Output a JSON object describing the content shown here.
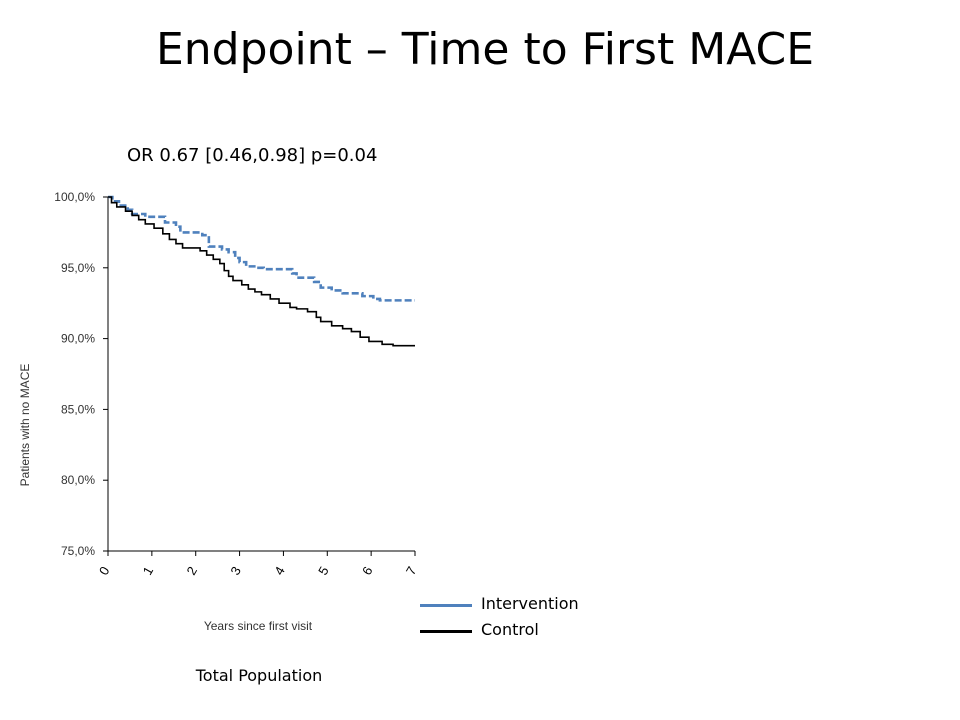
{
  "slide": {
    "title": "Endpoint – Time to First MACE"
  },
  "chart_data": {
    "type": "line",
    "title": "OR 0.67 [0.46,0.98]  p=0.04",
    "xlabel": "Years since first visit",
    "ylabel": "Patients with no MACE",
    "caption": "Total Population",
    "xlim": [
      0,
      7
    ],
    "ylim": [
      75,
      100
    ],
    "x_ticks": [
      "0",
      "1",
      "2",
      "3",
      "4",
      "5",
      "6",
      "7"
    ],
    "y_ticks": [
      "75,0%",
      "80,0%",
      "85,0%",
      "90,0%",
      "95,0%",
      "100,0%"
    ],
    "y_tick_values": [
      75,
      80,
      85,
      90,
      95,
      100
    ],
    "grid": false,
    "step": true,
    "legend_position": "bottom-right",
    "series": [
      {
        "name": "Intervention",
        "color": "#4F81BD",
        "dash": true,
        "x": [
          0,
          0.1,
          0.25,
          0.45,
          0.55,
          0.85,
          1.3,
          1.55,
          1.65,
          2.15,
          2.3,
          2.6,
          2.75,
          2.9,
          3.0,
          3.15,
          3.4,
          3.55,
          3.75,
          3.85,
          4.2,
          4.3,
          4.7,
          4.85,
          5.1,
          5.35,
          5.8,
          6.05,
          6.2,
          7.0
        ],
        "y": [
          100,
          99.7,
          99.4,
          99.1,
          98.8,
          98.6,
          98.2,
          97.9,
          97.5,
          97.3,
          96.5,
          96.3,
          96.1,
          95.7,
          95.4,
          95.1,
          95.0,
          94.9,
          94.9,
          94.9,
          94.6,
          94.3,
          94.0,
          93.6,
          93.4,
          93.2,
          93.0,
          92.8,
          92.7,
          92.7
        ]
      },
      {
        "name": "Control",
        "color": "#000000",
        "dash": false,
        "x": [
          0,
          0.08,
          0.2,
          0.4,
          0.55,
          0.7,
          0.85,
          1.05,
          1.25,
          1.4,
          1.55,
          1.7,
          1.85,
          2.1,
          2.25,
          2.4,
          2.55,
          2.65,
          2.75,
          2.85,
          3.05,
          3.2,
          3.35,
          3.5,
          3.7,
          3.9,
          4.15,
          4.3,
          4.55,
          4.75,
          4.85,
          5.1,
          5.35,
          5.55,
          5.75,
          5.95,
          6.25,
          6.5,
          7.0
        ],
        "y": [
          100,
          99.6,
          99.3,
          99.0,
          98.7,
          98.4,
          98.1,
          97.8,
          97.4,
          97.0,
          96.7,
          96.4,
          96.4,
          96.2,
          95.9,
          95.6,
          95.3,
          94.8,
          94.4,
          94.1,
          93.8,
          93.5,
          93.3,
          93.1,
          92.8,
          92.5,
          92.2,
          92.1,
          91.9,
          91.5,
          91.2,
          90.9,
          90.7,
          90.5,
          90.1,
          89.8,
          89.6,
          89.5,
          89.5
        ]
      }
    ]
  }
}
